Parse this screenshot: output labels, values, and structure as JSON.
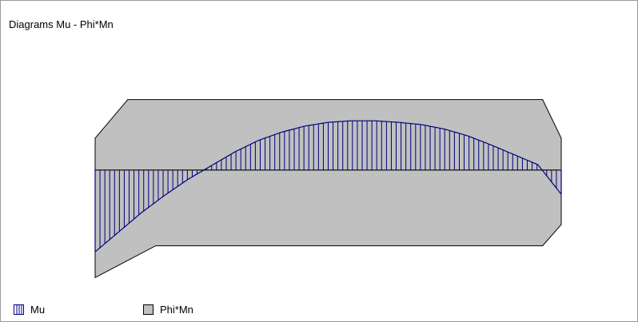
{
  "title": "Diagrams Mu - Phi*Mn",
  "colors": {
    "mu": "#000080",
    "phimn": "#c0c0c0",
    "axis": "#000000"
  },
  "chart_data": {
    "type": "area",
    "title": "Diagrams Mu - Phi*Mn",
    "xlabel": "",
    "ylabel": "",
    "grid": false,
    "legend": "bottom-left",
    "xlim": [
      0,
      1
    ],
    "ylim": [
      -1.5,
      1
    ],
    "series": [
      {
        "name": "Mu",
        "style": "hatched",
        "x": [
          0,
          0.05,
          0.1,
          0.15,
          0.2,
          0.25,
          0.3,
          0.35,
          0.4,
          0.45,
          0.5,
          0.55,
          0.6,
          0.65,
          0.7,
          0.75,
          0.8,
          0.85,
          0.9,
          0.95,
          1
        ],
        "y": [
          -1.08,
          -0.82,
          -0.56,
          -0.33,
          -0.12,
          0.06,
          0.24,
          0.39,
          0.5,
          0.58,
          0.63,
          0.65,
          0.65,
          0.63,
          0.6,
          0.54,
          0.45,
          0.33,
          0.2,
          0.07,
          -0.32
        ]
      },
      {
        "name": "Phi*Mn",
        "style": "filled",
        "upper": {
          "x": [
            0,
            0.07,
            0.96,
            1
          ],
          "y": [
            0.42,
            0.93,
            0.93,
            0.42
          ]
        },
        "lower": {
          "x": [
            0,
            0.13,
            0.96,
            1
          ],
          "y": [
            -1.42,
            -1.0,
            -1.0,
            -0.72
          ]
        }
      }
    ]
  },
  "legend": {
    "mu_label": "Mu",
    "phimn_label": "Phi*Mn"
  }
}
